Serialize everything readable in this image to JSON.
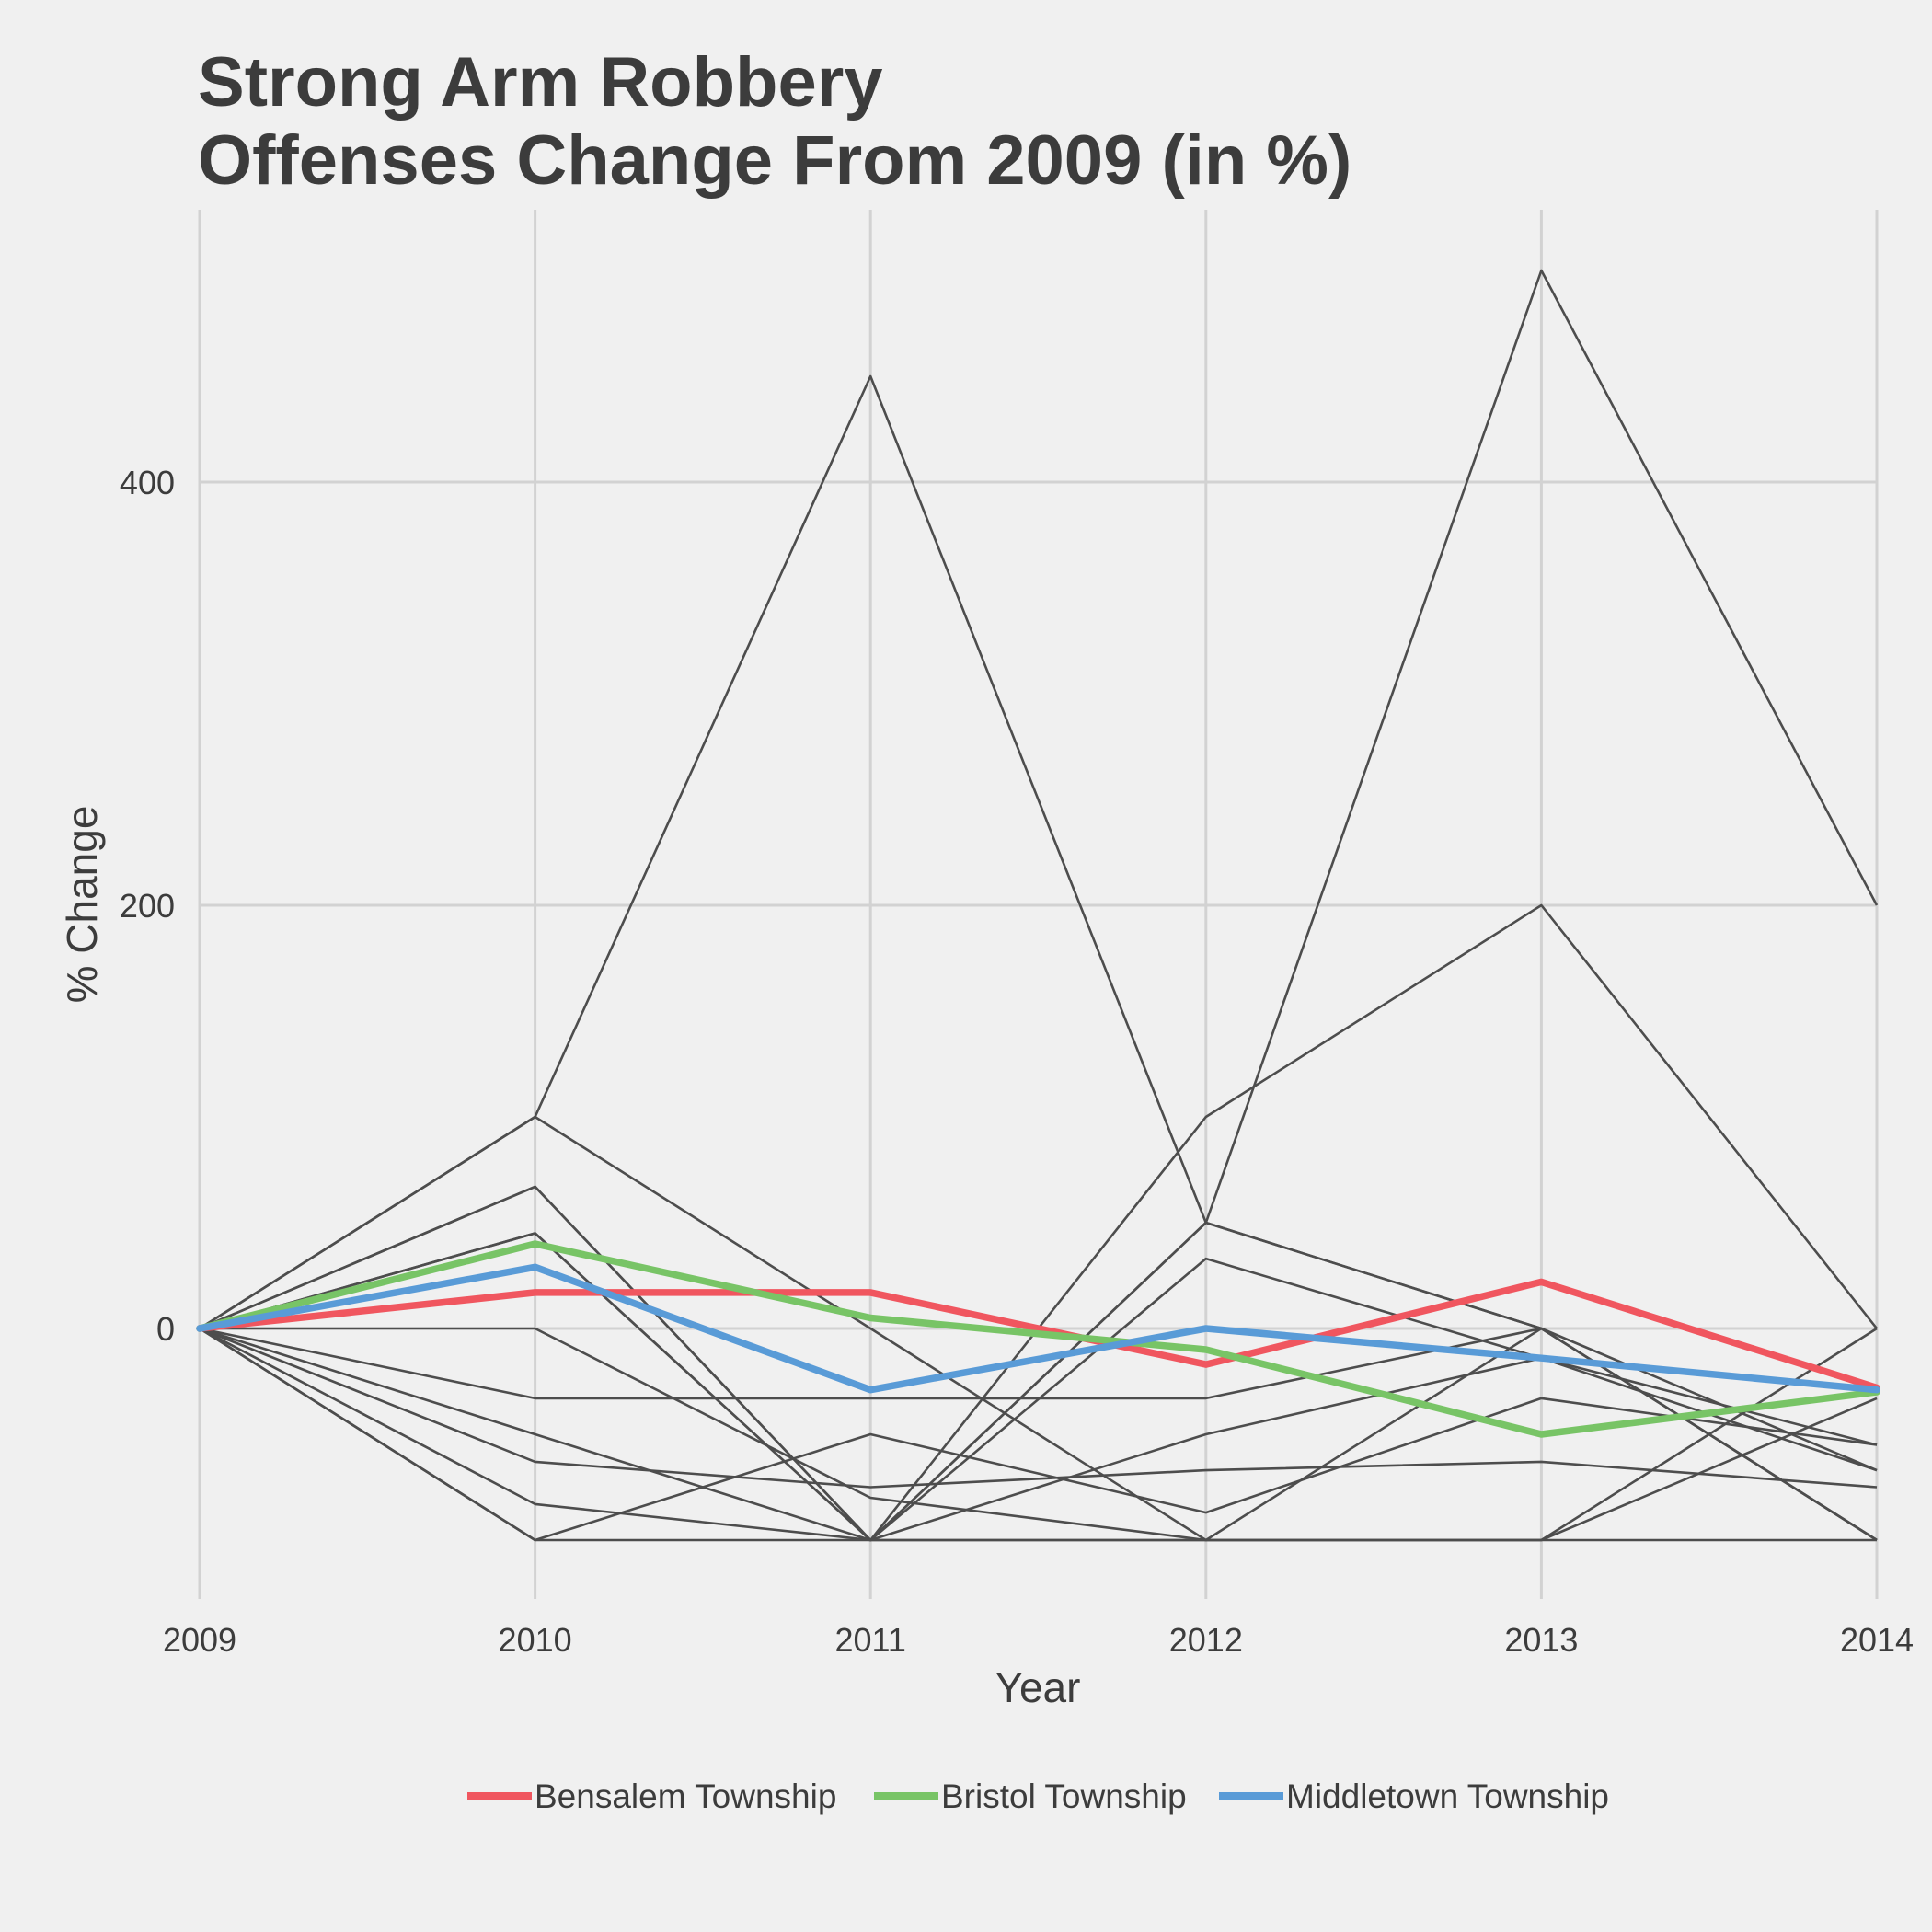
{
  "chart_data": {
    "type": "line",
    "title": [
      "Strong Arm Robbery",
      "Offenses Change From 2009 (in %)"
    ],
    "xlabel": "Year",
    "ylabel": "% Change",
    "x": [
      2009,
      2010,
      2011,
      2012,
      2013,
      2014
    ],
    "x_tick_labels": [
      "2009",
      "2010",
      "2011",
      "2012",
      "2013",
      "2014"
    ],
    "ylim": [
      -130,
      530
    ],
    "y_ticks": [
      0,
      200,
      400
    ],
    "y_tick_labels": [
      "0",
      "200",
      "400"
    ],
    "grid": true,
    "legend_position": "bottom",
    "highlight_series": [
      {
        "name": "Bensalem Township",
        "color": "#f0565f",
        "values": [
          0,
          17,
          17,
          -17,
          22,
          -28
        ]
      },
      {
        "name": "Bristol Township",
        "color": "#78c466",
        "values": [
          0,
          40,
          5,
          -10,
          -50,
          -30
        ]
      },
      {
        "name": "Middletown Township",
        "color": "#599bd7",
        "values": [
          0,
          29,
          -29,
          0,
          -14,
          -29
        ]
      }
    ],
    "other_series_color": "#4d4d4d",
    "other_series": [
      [
        0,
        100,
        450,
        50,
        0,
        -100
      ],
      [
        0,
        67,
        -100,
        50,
        500,
        200
      ],
      [
        0,
        67,
        -100,
        100,
        200,
        0
      ],
      [
        0,
        45,
        -100,
        33,
        -14,
        -67
      ],
      [
        0,
        100,
        0,
        -100,
        -100,
        0
      ],
      [
        0,
        45,
        -100,
        50,
        0,
        -67
      ],
      [
        0,
        0,
        -80,
        -100,
        -100,
        -33
      ],
      [
        0,
        -33,
        -33,
        -33,
        0,
        -100
      ],
      [
        0,
        -63,
        -75,
        -67,
        -63,
        -75
      ],
      [
        0,
        -50,
        -100,
        -50,
        -14,
        -55
      ],
      [
        0,
        -100,
        -50,
        -87,
        -33,
        -55
      ],
      [
        0,
        -83,
        -100,
        -100,
        0,
        -100
      ],
      [
        0,
        -100,
        -100,
        -100,
        -100,
        -100
      ]
    ]
  }
}
